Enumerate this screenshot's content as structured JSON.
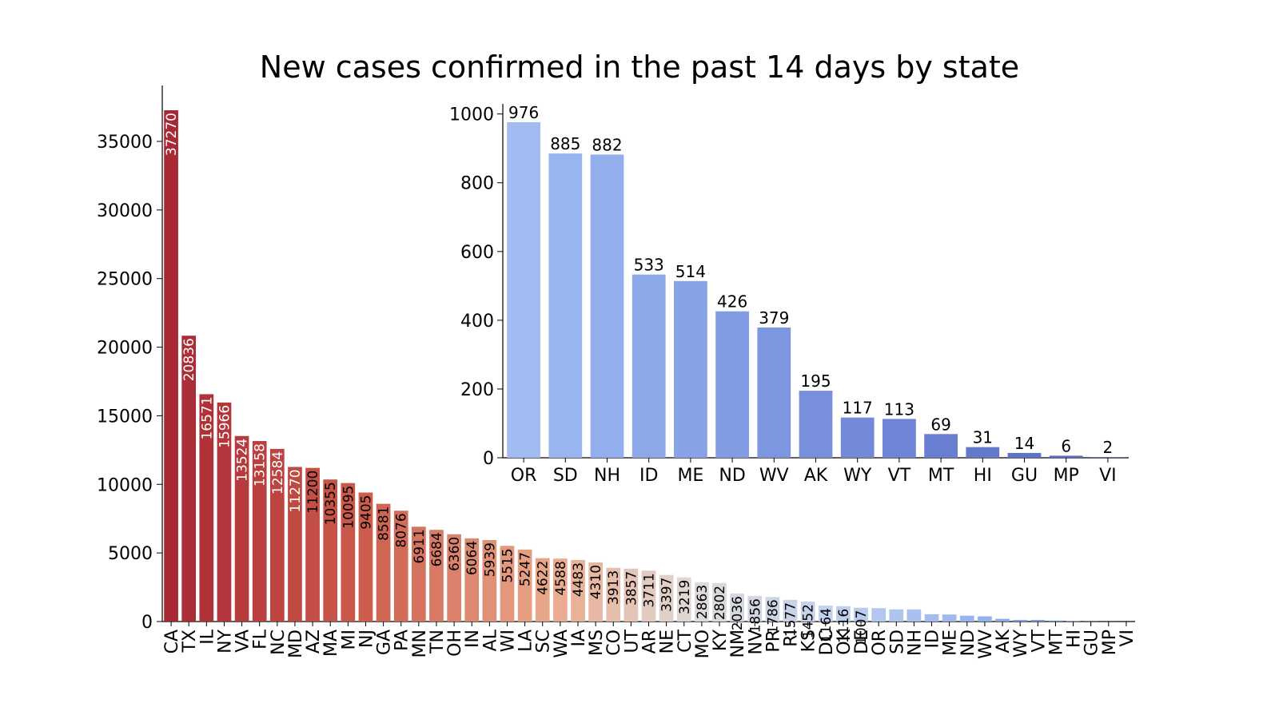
{
  "chart_data": [
    {
      "type": "bar",
      "title": "New cases confirmed in the past 14 days by state",
      "xlabel": "",
      "ylabel": "",
      "ylim": [
        0,
        38000
      ],
      "yticks": [
        0,
        5000,
        10000,
        15000,
        20000,
        25000,
        30000,
        35000
      ],
      "grid": false,
      "categories": [
        "CA",
        "TX",
        "IL",
        "NY",
        "VA",
        "FL",
        "NC",
        "MD",
        "AZ",
        "MA",
        "MI",
        "NJ",
        "GA",
        "PA",
        "MN",
        "TN",
        "OH",
        "IN",
        "AL",
        "WI",
        "LA",
        "SC",
        "WA",
        "IA",
        "MS",
        "CO",
        "UT",
        "AR",
        "NE",
        "CT",
        "MO",
        "KY",
        "NM",
        "NV",
        "PR",
        "RI",
        "KS",
        "DC",
        "OK",
        "DE",
        "OR",
        "SD",
        "NH",
        "ID",
        "ME",
        "ND",
        "WV",
        "AK",
        "WY",
        "VT",
        "MT",
        "HI",
        "GU",
        "MP",
        "VI"
      ],
      "values": [
        37270,
        20836,
        16571,
        15966,
        13524,
        13158,
        12584,
        11270,
        11200,
        10355,
        10095,
        9405,
        8581,
        8076,
        6911,
        6684,
        6360,
        6064,
        5939,
        5515,
        5247,
        4622,
        4588,
        4483,
        4310,
        3913,
        3857,
        3711,
        3397,
        3219,
        2863,
        2802,
        2036,
        1856,
        1786,
        1577,
        1452,
        1164,
        1116,
        1007,
        976,
        885,
        882,
        533,
        514,
        426,
        379,
        195,
        117,
        113,
        69,
        31,
        14,
        6,
        2
      ],
      "labels": [
        "37270",
        "20836",
        "16571",
        "15966",
        "13524",
        "13158",
        "12584",
        "11270",
        "11200",
        "10355",
        "10095",
        "9405",
        "8581",
        "8076",
        "6911",
        "6684",
        "6360",
        "6064",
        "5939",
        "5515",
        "5247",
        "4622",
        "4588",
        "4483",
        "4310",
        "3913",
        "3857",
        "3711",
        "3397",
        "3219",
        "2863",
        "2802",
        "2036",
        "1856",
        "1786",
        "1577",
        "1452",
        "1164",
        "1116",
        "1007"
      ],
      "colormap": "coolwarm (reversed)"
    },
    {
      "type": "bar",
      "title": "",
      "xlabel": "",
      "ylabel": "",
      "ylim": [
        0,
        1020
      ],
      "yticks": [
        0,
        200,
        400,
        600,
        800,
        1000
      ],
      "grid": false,
      "categories": [
        "OR",
        "SD",
        "NH",
        "ID",
        "ME",
        "ND",
        "WV",
        "AK",
        "WY",
        "VT",
        "MT",
        "HI",
        "GU",
        "MP",
        "VI"
      ],
      "values": [
        976,
        885,
        882,
        533,
        514,
        426,
        379,
        195,
        117,
        113,
        69,
        31,
        14,
        6,
        2
      ],
      "labels": [
        "976",
        "885",
        "882",
        "533",
        "514",
        "426",
        "379",
        "195",
        "117",
        "113",
        "69",
        "31",
        "14",
        "6",
        "2"
      ],
      "colors": [
        "#a2bbf0",
        "#98b5ef",
        "#93aeec",
        "#8da8e9",
        "#88a2e6",
        "#829ce3",
        "#7d96e0",
        "#7890dc",
        "#738ad8",
        "#6e84d4",
        "#697ed0",
        "#6478cc",
        "#5f72c8",
        "#5a6cc4",
        "#5566c0"
      ]
    }
  ]
}
